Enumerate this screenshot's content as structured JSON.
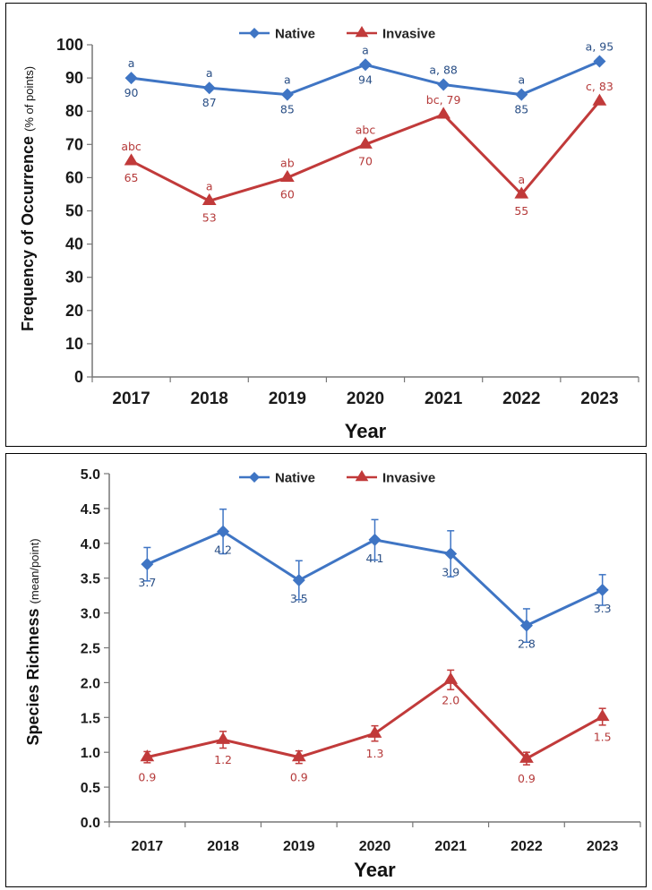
{
  "chart_data": [
    {
      "type": "line",
      "categories": [
        "2017",
        "2018",
        "2019",
        "2020",
        "2021",
        "2022",
        "2023"
      ],
      "ylim": [
        0,
        100
      ],
      "yticks": [
        "0",
        "10",
        "20",
        "30",
        "40",
        "50",
        "60",
        "70",
        "80",
        "90",
        "100"
      ],
      "xlabel": "Year",
      "ylabel": "Frequency of Occurrence",
      "ylabel_unit": "(% of points)",
      "legend_position": "top-center",
      "grid": false,
      "series": [
        {
          "name": "Native",
          "color": "#3f75c4",
          "marker": "diamond",
          "values": [
            90,
            87,
            85,
            94,
            88,
            85,
            95
          ],
          "letters": [
            "a",
            "a",
            "a",
            "a",
            "",
            "a",
            ""
          ],
          "value_labels": [
            "90",
            "87",
            "85",
            "94",
            "a, 88",
            "85",
            "a, 95"
          ]
        },
        {
          "name": "Invasive",
          "color": "#c13a3a",
          "marker": "triangle",
          "values": [
            65,
            53,
            60,
            70,
            79,
            55,
            83
          ],
          "letters": [
            "abc",
            "a",
            "ab",
            "abc",
            "",
            "a",
            ""
          ],
          "value_labels": [
            "65",
            "53",
            "60",
            "70",
            "bc, 79",
            "55",
            "c, 83"
          ]
        }
      ]
    },
    {
      "type": "line",
      "categories": [
        "2017",
        "2018",
        "2019",
        "2020",
        "2021",
        "2022",
        "2023"
      ],
      "ylim": [
        0,
        5
      ],
      "yticks": [
        "0.0",
        "0.5",
        "1.0",
        "1.5",
        "2.0",
        "2.5",
        "3.0",
        "3.5",
        "4.0",
        "4.5",
        "5.0"
      ],
      "xlabel": "Year",
      "ylabel": "Species Richness",
      "ylabel_unit": "(mean/point)",
      "legend_position": "top-center",
      "grid": false,
      "series": [
        {
          "name": "Native",
          "color": "#3f75c4",
          "marker": "diamond",
          "values": [
            3.7,
            4.17,
            3.47,
            4.05,
            3.85,
            2.82,
            3.33
          ],
          "error": [
            0.24,
            0.32,
            0.28,
            0.29,
            0.33,
            0.24,
            0.22
          ],
          "value_labels": [
            "3.7",
            "4.2",
            "3.5",
            "4.1",
            "3.9",
            "2.8",
            "3.3"
          ]
        },
        {
          "name": "Invasive",
          "color": "#c13a3a",
          "marker": "triangle",
          "values": [
            0.93,
            1.18,
            0.93,
            1.27,
            2.04,
            0.91,
            1.51
          ],
          "error": [
            0.08,
            0.12,
            0.09,
            0.11,
            0.14,
            0.09,
            0.12
          ],
          "value_labels": [
            "0.9",
            "1.2",
            "0.9",
            "1.3",
            "2.0",
            "0.9",
            "1.5"
          ]
        }
      ]
    }
  ]
}
